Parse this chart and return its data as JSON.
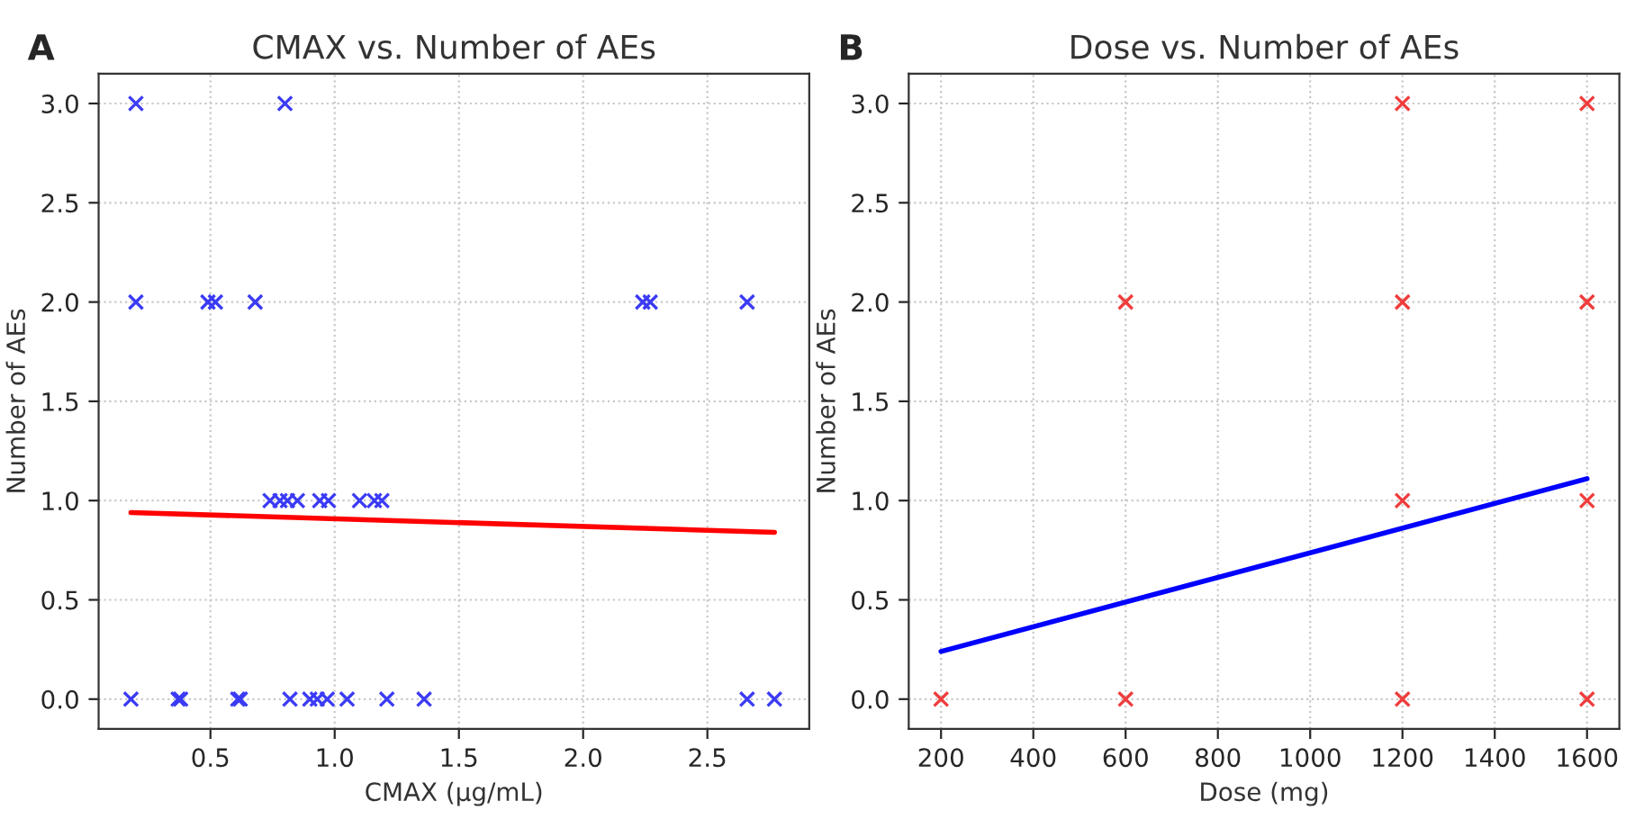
{
  "chart_data": [
    {
      "type": "scatter",
      "title": "CMAX vs. Number of AEs",
      "xlabel": "CMAX (µg/mL)",
      "ylabel": "Number of AEs",
      "annotations": [
        "A"
      ],
      "xlim": [
        0.05,
        2.91
      ],
      "xticks": [
        0.5,
        {
          "value": 1,
          "label": "1.0"
        },
        1.5,
        {
          "value": 2,
          "label": "2.0"
        },
        2.5
      ],
      "ylim": [
        -0.15,
        3.15
      ],
      "yticks": [
        {
          "value": 0,
          "label": "0.0"
        },
        0.5,
        {
          "value": 1,
          "label": "1.0"
        },
        1.5,
        {
          "value": 2,
          "label": "2.0"
        },
        2.5,
        {
          "value": 3,
          "label": "3.0"
        }
      ],
      "grid": true,
      "series": [
        {
          "marker": "cross",
          "color": "#3b3bf5",
          "x": [
            0.2,
            0.8,
            0.2,
            0.49,
            0.52,
            0.68,
            2.24,
            2.27,
            2.66,
            0.74,
            0.78,
            0.81,
            0.85,
            0.94,
            0.975,
            1.1,
            1.16,
            1.19,
            0.18,
            0.37,
            0.38,
            0.61,
            0.62,
            0.82,
            0.9,
            0.93,
            0.97,
            1.05,
            1.21,
            1.36,
            2.66,
            2.77
          ],
          "values": [
            3,
            3,
            2,
            2,
            2,
            2,
            2,
            2,
            2,
            1,
            1,
            1,
            1,
            1,
            1,
            1,
            1,
            1,
            0,
            0,
            0,
            0,
            0,
            0,
            0,
            0,
            0,
            0,
            0,
            0,
            0,
            0
          ]
        },
        {
          "type": "line",
          "color": "#ff0000",
          "x": [
            0.18,
            2.77
          ],
          "values": [
            0.94,
            0.84
          ]
        }
      ]
    },
    {
      "type": "scatter",
      "title": "Dose vs. Number of AEs",
      "xlabel": "Dose (mg)",
      "ylabel": "Number of AEs",
      "annotations": [
        "B"
      ],
      "xlim": [
        130,
        1670
      ],
      "xticks": [
        200,
        400,
        600,
        800,
        1000,
        1200,
        1400,
        1600
      ],
      "ylim": [
        -0.15,
        3.15
      ],
      "yticks": [
        {
          "value": 0,
          "label": "0.0"
        },
        0.5,
        {
          "value": 1,
          "label": "1.0"
        },
        1.5,
        {
          "value": 2,
          "label": "2.0"
        },
        2.5,
        {
          "value": 3,
          "label": "3.0"
        }
      ],
      "grid": true,
      "series": [
        {
          "marker": "cross",
          "color": "#f03c3c",
          "x": [
            200,
            600,
            600,
            1200,
            1200,
            1200,
            1200,
            1600,
            1600,
            1600,
            1600
          ],
          "values": [
            0,
            0,
            2,
            0,
            1,
            2,
            3,
            0,
            1,
            2,
            3
          ]
        },
        {
          "type": "line",
          "color": "#0000ff",
          "x": [
            200,
            1600
          ],
          "values": [
            0.24,
            1.11
          ]
        }
      ]
    }
  ]
}
